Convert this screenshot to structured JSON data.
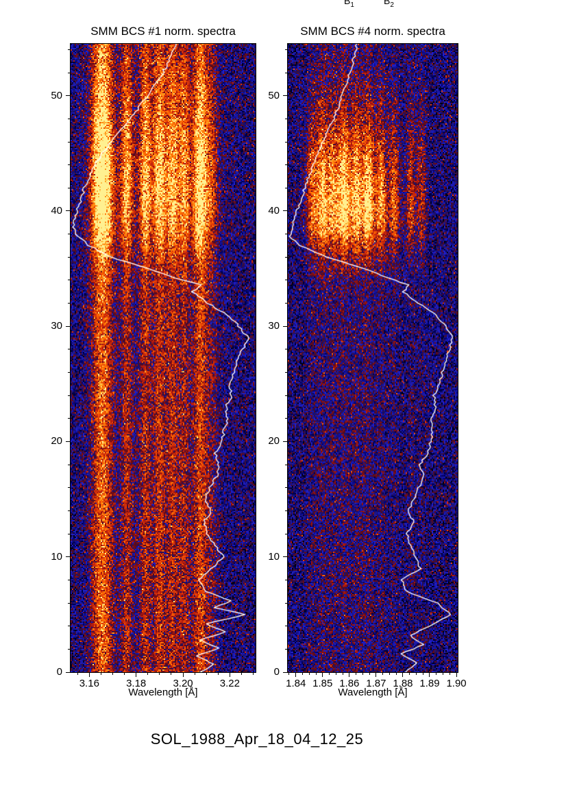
{
  "caption": "SOL_1988_Apr_18_04_12_25",
  "top_labels": [
    {
      "base": "B",
      "sub": "1"
    },
    {
      "base": "B",
      "sub": "2"
    }
  ],
  "colors": {
    "background": "#ffffff",
    "text": "#000000",
    "lightcurve": "#ffffff"
  },
  "colormap": [
    [
      0.0,
      "#000006"
    ],
    [
      0.1,
      "#00006e"
    ],
    [
      0.2,
      "#2020cc"
    ],
    [
      0.3,
      "#1c1060"
    ],
    [
      0.38,
      "#5c0a1a"
    ],
    [
      0.5,
      "#b01810"
    ],
    [
      0.62,
      "#e03a08"
    ],
    [
      0.74,
      "#ff6a00"
    ],
    [
      0.86,
      "#ffa020"
    ],
    [
      1.0,
      "#fff090"
    ]
  ],
  "chart_data": [
    {
      "type": "heatmap",
      "title": "SMM BCS #1 norm. spectra",
      "xlabel": "Wavelength [Å]",
      "ylabel": "",
      "xlim": [
        3.152,
        3.231
      ],
      "ylim": [
        0,
        54.5
      ],
      "xticks": [
        3.16,
        3.18,
        3.2,
        3.22
      ],
      "xtick_labels": [
        "3.16",
        "3.18",
        "3.20",
        "3.22"
      ],
      "xminor_step": 0.005,
      "yticks": [
        0,
        10,
        20,
        30,
        40,
        50
      ],
      "ytick_labels": [
        "0",
        "10",
        "20",
        "30",
        "40",
        "50"
      ],
      "yminor_step": 2,
      "seed": 71,
      "lines": [
        {
          "wl": 3.1655,
          "strength": 1.0,
          "width": 0.003
        },
        {
          "wl": 3.176,
          "strength": 0.5,
          "width": 0.0016
        },
        {
          "wl": 3.184,
          "strength": 0.5,
          "width": 0.0016
        },
        {
          "wl": 3.19,
          "strength": 0.55,
          "width": 0.0018
        },
        {
          "wl": 3.1956,
          "strength": 0.5,
          "width": 0.0018
        },
        {
          "wl": 3.2005,
          "strength": 0.45,
          "width": 0.0016
        },
        {
          "wl": 3.2075,
          "strength": 0.75,
          "width": 0.0022
        },
        {
          "wl": 3.2125,
          "strength": 0.28,
          "width": 0.0016
        },
        {
          "wl": 3.188,
          "strength": 0.2,
          "width": 0.018
        }
      ],
      "time_profile": {
        "base": 0.55,
        "peak": 0.78,
        "center": 40.5,
        "sigma_rise": 2.8,
        "sigma_decay": 7.5
      },
      "noise": {
        "amp": 0.4,
        "spike_prob": 0.05,
        "spike_amp": 0.28
      },
      "lightcurve": {
        "color": "#ffffff",
        "points": [
          [
            0,
            0.3
          ],
          [
            0.7,
            0.22
          ],
          [
            1.4,
            0.32
          ],
          [
            2.1,
            0.2
          ],
          [
            2.8,
            0.3
          ],
          [
            3.5,
            0.16
          ],
          [
            4.2,
            0.27
          ],
          [
            5,
            0.05
          ],
          [
            5.6,
            0.22
          ],
          [
            6.2,
            0.13
          ],
          [
            7,
            0.27
          ],
          [
            8,
            0.31
          ],
          [
            9,
            0.24
          ],
          [
            10,
            0.17
          ],
          [
            11,
            0.22
          ],
          [
            12,
            0.26
          ],
          [
            13,
            0.28
          ],
          [
            14,
            0.24
          ],
          [
            15,
            0.27
          ],
          [
            16,
            0.25
          ],
          [
            17,
            0.21
          ],
          [
            18,
            0.2
          ],
          [
            19,
            0.22
          ],
          [
            20,
            0.18
          ],
          [
            21,
            0.17
          ],
          [
            22,
            0.15
          ],
          [
            23,
            0.16
          ],
          [
            24,
            0.13
          ],
          [
            25,
            0.14
          ],
          [
            26,
            0.12
          ],
          [
            27,
            0.1
          ],
          [
            28,
            0.07
          ],
          [
            29,
            0.04
          ],
          [
            30,
            0.09
          ],
          [
            31,
            0.15
          ],
          [
            32,
            0.26
          ],
          [
            33,
            0.34
          ],
          [
            33.6,
            0.3
          ],
          [
            34.2,
            0.44
          ],
          [
            35,
            0.58
          ],
          [
            36,
            0.78
          ],
          [
            37,
            0.9
          ],
          [
            38,
            0.97
          ],
          [
            39,
            0.99
          ],
          [
            40,
            0.965
          ],
          [
            41,
            0.945
          ],
          [
            42,
            0.925
          ],
          [
            43,
            0.9
          ],
          [
            44,
            0.87
          ],
          [
            45,
            0.83
          ],
          [
            46,
            0.78
          ],
          [
            47,
            0.73
          ],
          [
            48,
            0.68
          ],
          [
            49,
            0.63
          ],
          [
            50,
            0.58
          ],
          [
            51,
            0.54
          ],
          [
            52,
            0.5
          ],
          [
            53,
            0.47
          ],
          [
            54,
            0.44
          ],
          [
            54.5,
            0.43
          ]
        ]
      }
    },
    {
      "type": "heatmap",
      "title": "SMM BCS #4 norm. spectra",
      "xlabel": "Wavelength [Å]",
      "ylabel": "",
      "xlim": [
        1.837,
        1.9005
      ],
      "ylim": [
        0,
        54.5
      ],
      "xticks": [
        1.84,
        1.85,
        1.86,
        1.87,
        1.88,
        1.89,
        1.9
      ],
      "xtick_labels": [
        "1.84",
        "1.85",
        "1.86",
        "1.87",
        "1.88",
        "1.89",
        "1.90"
      ],
      "xminor_step": 0.0025,
      "yticks": [
        0,
        10,
        20,
        30,
        40,
        50
      ],
      "ytick_labels": [
        "0",
        "10",
        "20",
        "30",
        "40",
        "50"
      ],
      "yminor_step": 2,
      "seed": 1988,
      "lines": [
        {
          "wl": 1.846,
          "strength": 0.45,
          "width": 0.0014
        },
        {
          "wl": 1.85,
          "strength": 0.7,
          "width": 0.0016
        },
        {
          "wl": 1.854,
          "strength": 0.55,
          "width": 0.0013
        },
        {
          "wl": 1.858,
          "strength": 0.8,
          "width": 0.0016
        },
        {
          "wl": 1.8626,
          "strength": 0.65,
          "width": 0.0014
        },
        {
          "wl": 1.867,
          "strength": 0.75,
          "width": 0.0016
        },
        {
          "wl": 1.8719,
          "strength": 0.55,
          "width": 0.0013
        },
        {
          "wl": 1.8767,
          "strength": 0.45,
          "width": 0.0013
        },
        {
          "wl": 1.883,
          "strength": 0.35,
          "width": 0.0012
        },
        {
          "wl": 1.887,
          "strength": 0.3,
          "width": 0.0012
        },
        {
          "wl": 1.862,
          "strength": 0.15,
          "width": 0.012
        }
      ],
      "time_profile": {
        "base": 0.13,
        "peak": 1.05,
        "center": 40.0,
        "sigma_rise": 2.6,
        "sigma_decay": 5.5
      },
      "noise": {
        "amp": 0.4,
        "spike_prob": 0.05,
        "spike_amp": 0.3
      },
      "lightcurve": {
        "color": "#ffffff",
        "points": [
          [
            0,
            0.31
          ],
          [
            0.8,
            0.24
          ],
          [
            1.6,
            0.33
          ],
          [
            2.4,
            0.2
          ],
          [
            3.2,
            0.28
          ],
          [
            4,
            0.16
          ],
          [
            5,
            0.04
          ],
          [
            6,
            0.12
          ],
          [
            7,
            0.3
          ],
          [
            8,
            0.33
          ],
          [
            9,
            0.22
          ],
          [
            10,
            0.25
          ],
          [
            11,
            0.28
          ],
          [
            12,
            0.3
          ],
          [
            13,
            0.26
          ],
          [
            14,
            0.29
          ],
          [
            15,
            0.26
          ],
          [
            16,
            0.23
          ],
          [
            17,
            0.2
          ],
          [
            18,
            0.22
          ],
          [
            19,
            0.18
          ],
          [
            20,
            0.16
          ],
          [
            21,
            0.15
          ],
          [
            22,
            0.16
          ],
          [
            23,
            0.13
          ],
          [
            24,
            0.14
          ],
          [
            25,
            0.11
          ],
          [
            26,
            0.09
          ],
          [
            27,
            0.07
          ],
          [
            28,
            0.05
          ],
          [
            29,
            0.03
          ],
          [
            30,
            0.07
          ],
          [
            31,
            0.13
          ],
          [
            32,
            0.23
          ],
          [
            33,
            0.32
          ],
          [
            33.6,
            0.29
          ],
          [
            34.2,
            0.41
          ],
          [
            35,
            0.55
          ],
          [
            36,
            0.77
          ],
          [
            37,
            0.93
          ],
          [
            37.8,
            0.99
          ],
          [
            38.6,
            0.975
          ],
          [
            39.5,
            0.955
          ],
          [
            40.5,
            0.935
          ],
          [
            42,
            0.9
          ],
          [
            43.5,
            0.865
          ],
          [
            45,
            0.82
          ],
          [
            46.5,
            0.78
          ],
          [
            48,
            0.73
          ],
          [
            49.5,
            0.69
          ],
          [
            51,
            0.655
          ],
          [
            52.5,
            0.625
          ],
          [
            54,
            0.6
          ],
          [
            54.5,
            0.595
          ]
        ]
      }
    }
  ]
}
